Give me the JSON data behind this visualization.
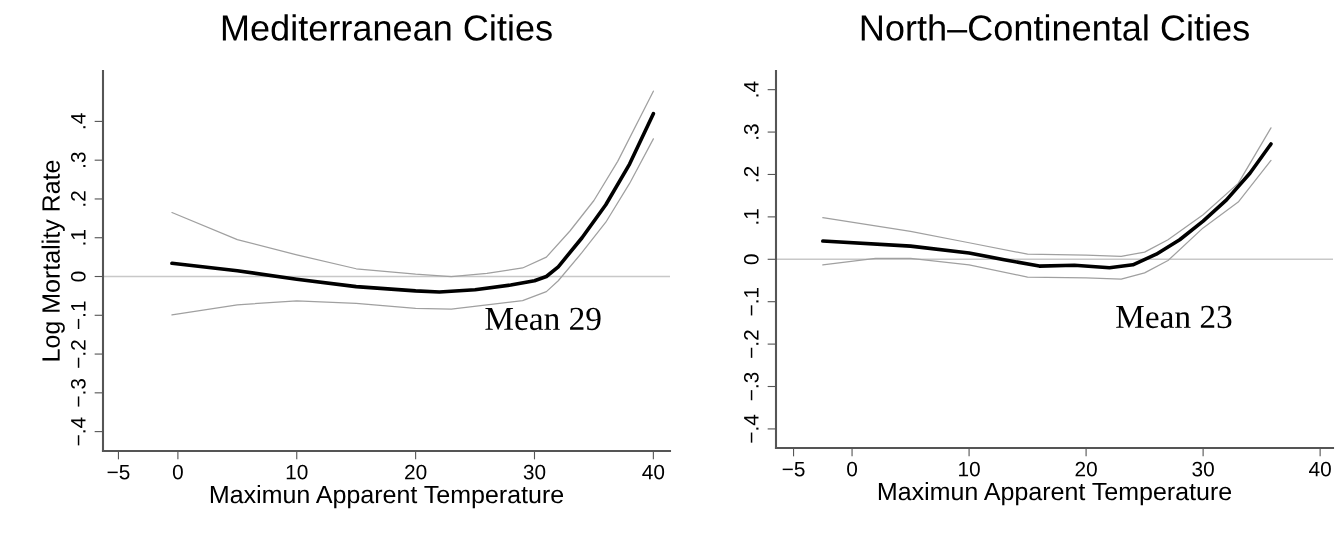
{
  "chart_data": [
    {
      "type": "line",
      "title": "Mediterranean Cities",
      "xlabel": "Maximun Apparent Temperature",
      "ylabel": "Log Mortality Rate",
      "annotations": [
        "Mean 29"
      ],
      "xlim": [
        -6.3,
        41.4
      ],
      "ylim": [
        -0.45,
        0.53
      ],
      "xticks": [
        {
          "value": -5,
          "label": "−5"
        },
        0,
        10,
        20,
        30,
        40
      ],
      "yticks": [
        {
          "value": -0.4,
          "label": "−.4"
        },
        {
          "value": -0.3,
          "label": "−.3"
        },
        {
          "value": -0.2,
          "label": "−.2"
        },
        {
          "value": -0.1,
          "label": "−.1"
        },
        0,
        {
          "value": 0.1,
          "label": ".1"
        },
        {
          "value": 0.2,
          "label": ".2"
        },
        {
          "value": 0.3,
          "label": ".3"
        },
        {
          "value": 0.4,
          "label": ".4"
        }
      ],
      "grid": false,
      "legend": false,
      "ref_lines": [
        {
          "axis": "y",
          "value": 0,
          "color": "#c8c8c8"
        }
      ],
      "series": [
        {
          "color": "#000000",
          "x": [
            -0.5,
            5,
            10,
            15,
            20,
            22,
            25,
            28,
            30,
            31,
            32,
            34,
            36,
            38,
            40
          ],
          "values": [
            0.034,
            0.015,
            -0.007,
            -0.026,
            -0.037,
            -0.04,
            -0.034,
            -0.022,
            -0.011,
            0,
            0.025,
            0.1,
            0.185,
            0.29,
            0.42
          ]
        },
        {
          "color": "#a0a0a0",
          "x": [
            -0.5,
            5,
            10,
            15,
            20,
            23,
            26,
            29,
            31,
            33,
            35,
            37,
            40
          ],
          "values": [
            0.165,
            0.095,
            0.056,
            0.02,
            0.006,
            0,
            0.008,
            0.022,
            0.05,
            0.118,
            0.196,
            0.297,
            0.478
          ]
        },
        {
          "color": "#a0a0a0",
          "x": [
            -0.5,
            5,
            10,
            15,
            20,
            23,
            26,
            29,
            31,
            32,
            34,
            36,
            38,
            40
          ],
          "values": [
            -0.099,
            -0.073,
            -0.063,
            -0.069,
            -0.082,
            -0.084,
            -0.073,
            -0.062,
            -0.039,
            -0.011,
            0.062,
            0.14,
            0.24,
            0.355
          ]
        }
      ]
    },
    {
      "type": "line",
      "title": "North–Continental Cities",
      "xlabel": "Maximun Apparent Temperature",
      "annotations": [
        "Mean 23"
      ],
      "xlim": [
        -6.5,
        41.1
      ],
      "ylim": [
        -0.445,
        0.444
      ],
      "xticks": [
        {
          "value": -5,
          "label": "−5"
        },
        0,
        10,
        20,
        30,
        40
      ],
      "yticks": [
        {
          "value": -0.4,
          "label": "−.4"
        },
        {
          "value": -0.3,
          "label": "−.3"
        },
        {
          "value": -0.2,
          "label": "−.2"
        },
        {
          "value": -0.1,
          "label": "−.1"
        },
        0,
        {
          "value": 0.1,
          "label": ".1"
        },
        {
          "value": 0.2,
          "label": ".2"
        },
        {
          "value": 0.3,
          "label": ".3"
        },
        {
          "value": 0.4,
          "label": ".4"
        }
      ],
      "grid": false,
      "legend": false,
      "ref_lines": [
        {
          "axis": "y",
          "value": 0,
          "color": "#c8c8c8"
        }
      ],
      "series": [
        {
          "color": "#000000",
          "x": [
            -2.5,
            5,
            10,
            13,
            16,
            19,
            22,
            24,
            26,
            28,
            30,
            32,
            34,
            35.8
          ],
          "values": [
            0.043,
            0.031,
            0.015,
            -0.001,
            -0.016,
            -0.014,
            -0.02,
            -0.013,
            0.012,
            0.046,
            0.09,
            0.14,
            0.203,
            0.272
          ]
        },
        {
          "color": "#a0a0a0",
          "x": [
            -2.5,
            5,
            10,
            15,
            20,
            23,
            25,
            27,
            30,
            33,
            35.8
          ],
          "values": [
            0.098,
            0.066,
            0.039,
            0.012,
            0.01,
            0.007,
            0.017,
            0.046,
            0.105,
            0.179,
            0.31
          ]
        },
        {
          "color": "#a0a0a0",
          "x": [
            -2.5,
            2,
            5,
            10,
            15,
            20,
            23,
            25,
            27,
            30,
            33,
            35.8
          ],
          "values": [
            -0.013,
            0.002,
            0.002,
            -0.013,
            -0.042,
            -0.044,
            -0.047,
            -0.032,
            -0.003,
            0.074,
            0.135,
            0.233
          ]
        }
      ]
    }
  ]
}
